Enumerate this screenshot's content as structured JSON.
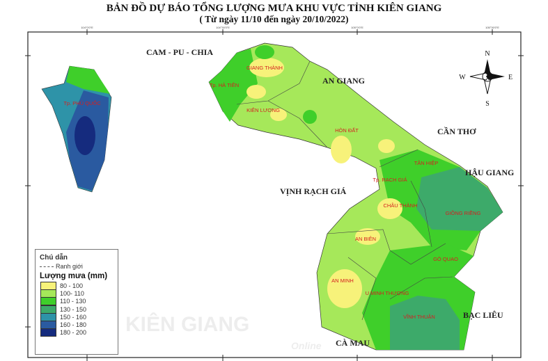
{
  "title": "BẢN ĐỒ DỰ BÁO TỔNG LƯỢNG MƯA KHU VỰC TỈNH KIÊN GIANG",
  "subtitle": "( Từ ngày 11/10 đến ngày 20/10/2022)",
  "lon_ticks": [
    "104°0'0\"E",
    "104°30'0\"E",
    "105°0'0\"E",
    "105°30'0\"E"
  ],
  "regions": {
    "cambodia": "CAM - PU - CHIA",
    "an_giang": "AN GIANG",
    "can_tho": "CẦN THƠ",
    "hau_giang": "HẬU GIANG",
    "gulf": "VỊNH RẠCH GIÁ",
    "bac_lieu": "BẠC LIÊU",
    "ca_mau": "CÀ MAU"
  },
  "districts": [
    "GIANG THÀNH",
    "Tp. HÀ TIÊN",
    "KIÊN LƯƠNG",
    "Tp. PHÚ QUỐC",
    "HÒN ĐẤT",
    "TÂN HIỆP",
    "Tp. RẠCH GIÁ",
    "CHÂU THÀNH",
    "GIỒNG RIỀNG",
    "AN BIÊN",
    "GÒ QUAO",
    "AN MINH",
    "U MINH THƯỢNG",
    "VĨNH THUẬN"
  ],
  "compass": {
    "n": "N",
    "s": "S",
    "e": "E",
    "w": "W"
  },
  "legend": {
    "heading": "Chú dẫn",
    "boundary": "Ranh giới",
    "title": "Lượng mưa (mm)",
    "classes": [
      {
        "label": "80 - 100",
        "color": "#f7f27a"
      },
      {
        "label": "100- 110",
        "color": "#a6e85a"
      },
      {
        "label": "110 - 130",
        "color": "#3fcf2a"
      },
      {
        "label": "130 - 150",
        "color": "#3daa6a"
      },
      {
        "label": "150 - 160",
        "color": "#2e93a8"
      },
      {
        "label": "160 - 180",
        "color": "#2a5aa0"
      },
      {
        "label": "180 - 200",
        "color": "#152b7e"
      }
    ]
  },
  "watermark": {
    "main": "KIÊN GIANG",
    "sub": "Online"
  }
}
